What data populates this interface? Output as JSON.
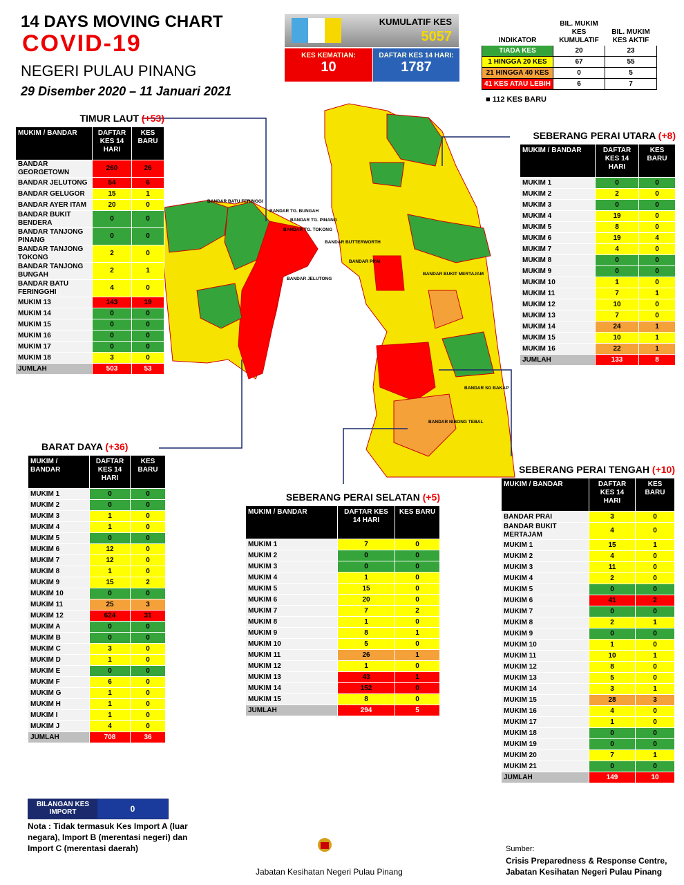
{
  "header": {
    "line1": "14  DAYS MOVING CHART",
    "line2": "COVID-19",
    "line3": "NEGERI PULAU PINANG",
    "dates": "29 Disember 2020 – 11 Januari 2021"
  },
  "summary": {
    "cumulative_label": "KUMULATIF KES",
    "cumulative": 5057,
    "deaths_label": "KES KEMATIAN:",
    "deaths": 10,
    "active_label": "DAFTAR KES 14 HARI:",
    "active": 1787
  },
  "legend": {
    "headers": [
      "INDIKATOR",
      "BIL. MUKIM KES KUMULATIF",
      "BIL. MUKIM KES AKTIF"
    ],
    "rows": [
      [
        "TIADA KES",
        20,
        23
      ],
      [
        "1 HINGGA 20 KES",
        67,
        55
      ],
      [
        "21 HINGGA 40 KES",
        0,
        5
      ],
      [
        "41 KES ATAU LEBIH",
        6,
        7
      ]
    ],
    "note": "112 KES BARU"
  },
  "map_labels": [
    "BANDAR BATU FERINGGI",
    "BANDAR TG. BUNGAH",
    "BANDAR TG. PINANG",
    "BANDAR TG. TOKONG",
    "BANDAR JELUTONG",
    "BANDAR BUTTERWORTH",
    "BANDAR PRAI",
    "BANDAR BUKIT MERTAJAM",
    "BANDAR SG BAKAP",
    "BANDAR NIBONG TEBAL"
  ],
  "tables": [
    {
      "title": "TIMUR LAUT",
      "delta": "(+53)",
      "headers": [
        "MUKIM / BANDAR",
        "DAFTAR KES 14 HARI",
        "KES BARU"
      ],
      "rows": [
        [
          "BANDAR GEORGETOWN",
          260,
          26
        ],
        [
          "BANDAR JELUTONG",
          54,
          6
        ],
        [
          "BANDAR GELUGOR",
          15,
          1
        ],
        [
          "BANDAR AYER ITAM",
          20,
          0
        ],
        [
          "BANDAR BUKIT BENDERA",
          0,
          0
        ],
        [
          "BANDAR TANJONG PINANG",
          0,
          0
        ],
        [
          "BANDAR TANJONG TOKONG",
          2,
          0
        ],
        [
          "BANDAR TANJONG BUNGAH",
          2,
          1
        ],
        [
          "BANDAR BATU FERINGGHI",
          4,
          0
        ],
        [
          "MUKIM 13",
          143,
          19
        ],
        [
          "MUKIM 14",
          0,
          0
        ],
        [
          "MUKIM 15",
          0,
          0
        ],
        [
          "MUKIM 16",
          0,
          0
        ],
        [
          "MUKIM 17",
          0,
          0
        ],
        [
          "MUKIM 18",
          3,
          0
        ]
      ],
      "total": [
        "JUMLAH",
        503,
        53
      ]
    },
    {
      "title": "SEBERANG PERAI UTARA",
      "delta": "(+8)",
      "headers": [
        "MUKIM / BANDAR",
        "DAFTAR KES 14 HARI",
        "KES BARU"
      ],
      "rows": [
        [
          "MUKIM 1",
          0,
          0
        ],
        [
          "MUKIM 2",
          2,
          0
        ],
        [
          "MUKIM 3",
          0,
          0
        ],
        [
          "MUKIM 4",
          19,
          0
        ],
        [
          "MUKIM 5",
          8,
          0
        ],
        [
          "MUKIM 6",
          19,
          4
        ],
        [
          "MUKIM 7",
          4,
          0
        ],
        [
          "MUKIM 8",
          0,
          0
        ],
        [
          "MUKIM 9",
          0,
          0
        ],
        [
          "MUKIM 10",
          1,
          0
        ],
        [
          "MUKIM 11",
          7,
          1
        ],
        [
          "MUKIM 12",
          10,
          0
        ],
        [
          "MUKIM 13",
          7,
          0
        ],
        [
          "MUKIM 14",
          24,
          1
        ],
        [
          "MUKIM 15",
          10,
          1
        ],
        [
          "MUKIM 16",
          22,
          1
        ]
      ],
      "total": [
        "JUMLAH",
        133,
        8
      ]
    },
    {
      "title": "BARAT DAYA",
      "delta": "(+36)",
      "headers": [
        "MUKIM / BANDAR",
        "DAFTAR KES 14 HARI",
        "KES BARU"
      ],
      "rows": [
        [
          "MUKIM 1",
          0,
          0
        ],
        [
          "MUKIM 2",
          0,
          0
        ],
        [
          "MUKIM 3",
          1,
          0
        ],
        [
          "MUKIM 4",
          1,
          0
        ],
        [
          "MUKIM 5",
          0,
          0
        ],
        [
          "MUKIM 6",
          12,
          0
        ],
        [
          "MUKIM 7",
          12,
          0
        ],
        [
          "MUKIM 8",
          1,
          0
        ],
        [
          "MUKIM 9",
          15,
          2
        ],
        [
          "MUKIM 10",
          0,
          0
        ],
        [
          "MUKIM 11",
          25,
          3
        ],
        [
          "MUKIM 12",
          624,
          31
        ],
        [
          "MUKIM A",
          0,
          0
        ],
        [
          "MUKIM B",
          0,
          0
        ],
        [
          "MUKIM C",
          3,
          0
        ],
        [
          "MUKIM D",
          1,
          0
        ],
        [
          "MUKIM E",
          0,
          0
        ],
        [
          "MUKIM F",
          6,
          0
        ],
        [
          "MUKIM G",
          1,
          0
        ],
        [
          "MUKIM H",
          1,
          0
        ],
        [
          "MUKIM I",
          1,
          0
        ],
        [
          "MUKIM J",
          4,
          0
        ]
      ],
      "total": [
        "JUMLAH",
        708,
        36
      ]
    },
    {
      "title": "SEBERANG PERAI SELATAN",
      "delta": "(+5)",
      "headers": [
        "MUKIM / BANDAR",
        "DAFTAR KES 14 HARI",
        "KES BARU"
      ],
      "rows": [
        [
          "MUKIM 1",
          7,
          0
        ],
        [
          "MUKIM 2",
          0,
          0
        ],
        [
          "MUKIM 3",
          0,
          0
        ],
        [
          "MUKIM 4",
          1,
          0
        ],
        [
          "MUKIM 5",
          15,
          0
        ],
        [
          "MUKIM 6",
          20,
          0
        ],
        [
          "MUKIM 7",
          7,
          2
        ],
        [
          "MUKIM 8",
          1,
          0
        ],
        [
          "MUKIM 9",
          8,
          1
        ],
        [
          "MUKIM 10",
          5,
          0
        ],
        [
          "MUKIM 11",
          26,
          1
        ],
        [
          "MUKIM 12",
          1,
          0
        ],
        [
          "MUKIM 13",
          43,
          1
        ],
        [
          "MUKIM 14",
          152,
          0
        ],
        [
          "MUKIM 15",
          8,
          0
        ]
      ],
      "total": [
        "JUMLAH",
        294,
        5
      ]
    },
    {
      "title": "SEBERANG PERAI TENGAH",
      "delta": "(+10)",
      "headers": [
        "MUKIM / BANDAR",
        "DAFTAR KES 14 HARI",
        "KES BARU"
      ],
      "rows": [
        [
          "BANDAR PRAI",
          3,
          0
        ],
        [
          "BANDAR BUKIT MERTAJAM",
          4,
          0
        ],
        [
          "MUKIM 1",
          15,
          1
        ],
        [
          "MUKIM 2",
          4,
          0
        ],
        [
          "MUKIM 3",
          11,
          0
        ],
        [
          "MUKIM 4",
          2,
          0
        ],
        [
          "MUKIM 5",
          0,
          0
        ],
        [
          "MUKIM 6",
          41,
          2
        ],
        [
          "MUKIM 7",
          0,
          0
        ],
        [
          "MUKIM 8",
          2,
          1
        ],
        [
          "MUKIM 9",
          0,
          0
        ],
        [
          "MUKIM 10",
          1,
          0
        ],
        [
          "MUKIM 11",
          10,
          1
        ],
        [
          "MUKIM 12",
          8,
          0
        ],
        [
          "MUKIM 13",
          5,
          0
        ],
        [
          "MUKIM 14",
          3,
          1
        ],
        [
          "MUKIM 15",
          28,
          3
        ],
        [
          "MUKIM 16",
          4,
          0
        ],
        [
          "MUKIM 17",
          1,
          0
        ],
        [
          "MUKIM 18",
          0,
          0
        ],
        [
          "MUKIM 19",
          0,
          0
        ],
        [
          "MUKIM 20",
          7,
          1
        ],
        [
          "MUKIM 21",
          0,
          0
        ]
      ],
      "total": [
        "JUMLAH",
        149,
        10
      ]
    }
  ],
  "import": {
    "label": "BILANGAN KES IMPORT",
    "value": 0,
    "note": "Nota : Tidak termasuk Kes Import A (luar negara), Import B (merentasi negeri) dan Import C (merentasi daerah)"
  },
  "footer": {
    "center": "Jabatan Kesihatan Negeri Pulau Pinang",
    "source_label": "Sumber:",
    "source": "Crisis Preparedness & Response Centre, Jabatan Kesihatan Negeri Pulau Pinang"
  }
}
